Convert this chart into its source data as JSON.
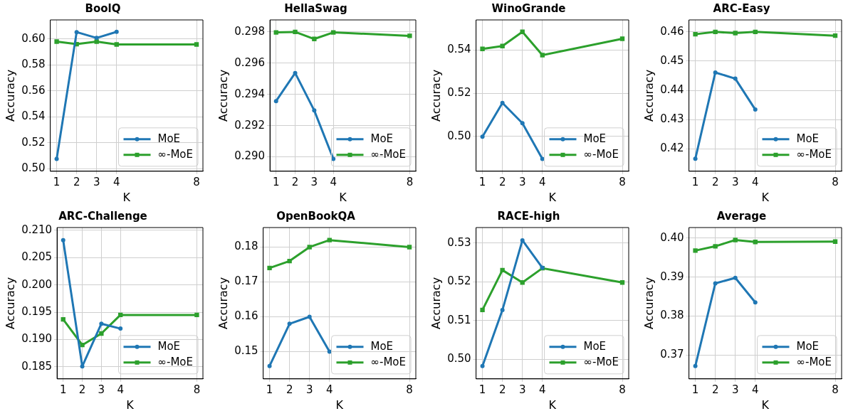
{
  "chart_data": [
    {
      "type": "line",
      "title": "BoolQ",
      "xlabel": "K",
      "ylabel": "Accuracy",
      "xlim": [
        0.68,
        8.32
      ],
      "xticks": [
        1,
        2,
        3,
        4,
        8
      ],
      "ylim": [
        0.498,
        0.6147
      ],
      "yticks": [
        {
          "value": 0.5,
          "label": "0.50"
        },
        0.52,
        0.54,
        0.56,
        0.58,
        {
          "value": 0.6,
          "label": "0.60"
        }
      ],
      "grid": true,
      "legend": "bottom right",
      "series": [
        {
          "name": "MoE",
          "color": "#1f77b4",
          "marker": "circle",
          "x": [
            1,
            2,
            3,
            4
          ],
          "values": [
            0.5075,
            0.6053,
            0.6008,
            0.6055
          ]
        },
        {
          "name": "∞-MoE",
          "color": "#2ca02c",
          "marker": "square",
          "x": [
            1,
            2,
            3,
            4,
            8
          ],
          "values": [
            0.598,
            0.596,
            0.598,
            0.5958,
            0.5958
          ]
        }
      ]
    },
    {
      "type": "line",
      "title": "HellaSwag",
      "xlabel": "K",
      "ylabel": "Accuracy",
      "xlim": [
        0.68,
        8.32
      ],
      "xticks": [
        1,
        2,
        3,
        4,
        8
      ],
      "ylim": [
        0.28908,
        0.29877
      ],
      "yticks": [
        {
          "value": 0.29,
          "label": "0.290"
        },
        0.292,
        0.294,
        0.296,
        0.298
      ],
      "grid": true,
      "legend": "bottom right",
      "series": [
        {
          "name": "MoE",
          "color": "#1f77b4",
          "marker": "circle",
          "x": [
            1,
            2,
            3,
            4
          ],
          "values": [
            0.29357,
            0.29537,
            0.29297,
            0.28987
          ]
        },
        {
          "name": "∞-MoE",
          "color": "#2ca02c",
          "marker": "square",
          "x": [
            1,
            2,
            3,
            4,
            8
          ],
          "values": [
            0.29797,
            0.298,
            0.29755,
            0.29797,
            0.29775
          ]
        }
      ]
    },
    {
      "type": "line",
      "title": "WinoGrande",
      "xlabel": "K",
      "ylabel": "Accuracy",
      "xlim": [
        0.68,
        8.32
      ],
      "xticks": [
        1,
        2,
        3,
        4,
        8
      ],
      "ylim": [
        0.4839,
        0.5539
      ],
      "yticks": [
        {
          "value": 0.5,
          "label": "0.50"
        },
        0.52,
        0.54
      ],
      "grid": true,
      "legend": "bottom right",
      "series": [
        {
          "name": "MoE",
          "color": "#1f77b4",
          "marker": "circle",
          "x": [
            1,
            2,
            3,
            4
          ],
          "values": [
            0.4999,
            0.5155,
            0.5061,
            0.4896
          ]
        },
        {
          "name": "∞-MoE",
          "color": "#2ca02c",
          "marker": "square",
          "x": [
            1,
            2,
            3,
            4,
            8
          ],
          "values": [
            0.5405,
            0.5418,
            0.5484,
            0.5376,
            0.5452
          ]
        }
      ]
    },
    {
      "type": "line",
      "title": "ARC-Easy",
      "xlabel": "K",
      "ylabel": "Accuracy",
      "xlim": [
        0.68,
        8.32
      ],
      "xticks": [
        1,
        2,
        3,
        4,
        8
      ],
      "ylim": [
        0.4123,
        0.4641
      ],
      "yticks": [
        0.42,
        0.43,
        0.44,
        0.45,
        0.46
      ],
      "grid": true,
      "legend": "bottom right",
      "series": [
        {
          "name": "MoE",
          "color": "#1f77b4",
          "marker": "circle",
          "x": [
            1,
            2,
            3,
            4
          ],
          "values": [
            0.4166,
            0.4461,
            0.444,
            0.4334
          ]
        },
        {
          "name": "∞-MoE",
          "color": "#2ca02c",
          "marker": "square",
          "x": [
            1,
            2,
            3,
            4,
            8
          ],
          "values": [
            0.4592,
            0.46,
            0.4596,
            0.46,
            0.4587
          ]
        }
      ]
    },
    {
      "type": "line",
      "title": "ARC-Challenge",
      "xlabel": "K",
      "ylabel": "Accuracy",
      "xlim": [
        0.68,
        8.32
      ],
      "xticks": [
        1,
        2,
        3,
        4,
        8
      ],
      "ylim": [
        0.1828,
        0.2105
      ],
      "yticks": [
        0.185,
        {
          "value": 0.19,
          "label": "0.190"
        },
        0.195,
        {
          "value": 0.2,
          "label": "0.200"
        },
        0.205,
        {
          "value": 0.21,
          "label": "0.210"
        }
      ],
      "grid": true,
      "legend": "bottom right",
      "series": [
        {
          "name": "MoE",
          "color": "#1f77b4",
          "marker": "circle",
          "x": [
            1,
            2,
            3,
            4
          ],
          "values": [
            0.2082,
            0.1851,
            0.1929,
            0.192
          ]
        },
        {
          "name": "∞-MoE",
          "color": "#2ca02c",
          "marker": "square",
          "x": [
            1,
            2,
            3,
            4,
            8
          ],
          "values": [
            0.1937,
            0.189,
            0.1911,
            0.1945,
            0.1945
          ]
        }
      ]
    },
    {
      "type": "line",
      "title": "OpenBookQA",
      "xlabel": "K",
      "ylabel": "Accuracy",
      "xlim": [
        0.68,
        8.32
      ],
      "xticks": [
        1,
        2,
        3,
        4,
        8
      ],
      "ylim": [
        0.1422,
        0.1856
      ],
      "yticks": [
        {
          "value": 0.15,
          "label": "0.15"
        },
        {
          "value": 0.16,
          "label": "0.16"
        },
        {
          "value": 0.17,
          "label": "0.17"
        },
        {
          "value": 0.18,
          "label": "0.18"
        }
      ],
      "grid": true,
      "legend": "bottom right",
      "series": [
        {
          "name": "MoE",
          "color": "#1f77b4",
          "marker": "circle",
          "x": [
            1,
            2,
            3,
            4
          ],
          "values": [
            0.1459,
            0.158,
            0.16,
            0.15
          ]
        },
        {
          "name": "∞-MoE",
          "color": "#2ca02c",
          "marker": "square",
          "x": [
            1,
            2,
            3,
            4,
            8
          ],
          "values": [
            0.174,
            0.176,
            0.18,
            0.182,
            0.18
          ]
        }
      ]
    },
    {
      "type": "line",
      "title": "RACE-high",
      "xlabel": "K",
      "ylabel": "Accuracy",
      "xlim": [
        0.68,
        8.32
      ],
      "xticks": [
        1,
        2,
        3,
        4,
        8
      ],
      "ylim": [
        0.4949,
        0.534
      ],
      "yticks": [
        {
          "value": 0.5,
          "label": "0.50"
        },
        0.51,
        0.52,
        0.53
      ],
      "grid": true,
      "legend": "bottom right",
      "series": [
        {
          "name": "MoE",
          "color": "#1f77b4",
          "marker": "circle",
          "x": [
            1,
            2,
            3,
            4
          ],
          "values": [
            0.4982,
            0.5127,
            0.5307,
            0.5236
          ]
        },
        {
          "name": "∞-MoE",
          "color": "#2ca02c",
          "marker": "square",
          "x": [
            1,
            2,
            3,
            4,
            8
          ],
          "values": [
            0.5127,
            0.523,
            0.5198,
            0.5235,
            0.5198
          ]
        }
      ]
    },
    {
      "type": "line",
      "title": "Average",
      "xlabel": "K",
      "ylabel": "Accuracy",
      "xlim": [
        0.68,
        8.32
      ],
      "xticks": [
        1,
        2,
        3,
        4,
        8
      ],
      "ylim": [
        0.3639,
        0.4027
      ],
      "yticks": [
        0.37,
        0.38,
        0.39,
        {
          "value": 0.4,
          "label": "0.40"
        }
      ],
      "grid": true,
      "legend": "bottom right",
      "series": [
        {
          "name": "MoE",
          "color": "#1f77b4",
          "marker": "circle",
          "x": [
            1,
            2,
            3,
            4
          ],
          "values": [
            0.3672,
            0.3884,
            0.3898,
            0.3835
          ]
        },
        {
          "name": "∞-MoE",
          "color": "#2ca02c",
          "marker": "square",
          "x": [
            1,
            2,
            3,
            4,
            8
          ],
          "values": [
            0.3968,
            0.3979,
            0.3995,
            0.399,
            0.3991
          ]
        }
      ]
    }
  ]
}
